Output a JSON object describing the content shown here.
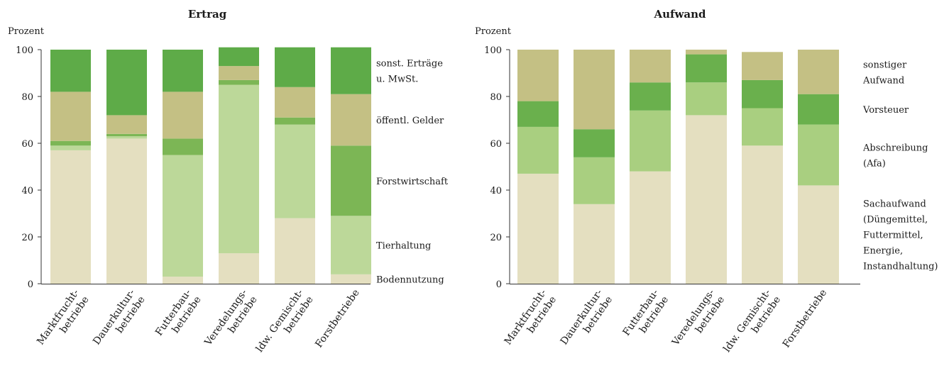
{
  "chart_data": [
    {
      "type": "bar",
      "stacked": true,
      "title": "Ertrag",
      "ylabel": "Prozent",
      "ylim": [
        0,
        100
      ],
      "yticks": [
        "0",
        "20",
        "40",
        "60",
        "80",
        "100"
      ],
      "grid": false,
      "legend_position": "right",
      "categories": [
        [
          "Marktfrucht-",
          "betriebe"
        ],
        [
          "Dauerkultur-",
          "betriebe"
        ],
        [
          "Futterbau-",
          "betriebe"
        ],
        [
          "Veredelungs-",
          "betriebe"
        ],
        [
          "ldw. Gemischt-",
          "betriebe"
        ],
        [
          "Forstbetriebe"
        ]
      ],
      "series": [
        {
          "name": "Bodennutzung",
          "legend_lines": [
            "Bodennutzung"
          ],
          "color": "#e4dfc0",
          "values": [
            57,
            62,
            3,
            13,
            28,
            4
          ]
        },
        {
          "name": "Tierhaltung",
          "legend_lines": [
            "Tierhaltung"
          ],
          "color": "#bcd899",
          "values": [
            2,
            1,
            52,
            72,
            40,
            25
          ]
        },
        {
          "name": "Forstwirtschaft",
          "legend_lines": [
            "Forstwirtschaft"
          ],
          "color": "#7cb655",
          "values": [
            2,
            1,
            7,
            2,
            3,
            30
          ]
        },
        {
          "name": "öffentl. Gelder",
          "legend_lines": [
            "öffentl. Gelder"
          ],
          "color": "#c4c084",
          "values": [
            21,
            8,
            20,
            6,
            13,
            22
          ]
        },
        {
          "name": "sonst. Erträge u. MwSt.",
          "legend_lines": [
            "sonst. Erträge",
            "u. MwSt."
          ],
          "color": "#5eab48",
          "values": [
            18,
            28,
            18,
            8,
            17,
            20
          ]
        }
      ]
    },
    {
      "type": "bar",
      "stacked": true,
      "title": "Aufwand",
      "ylabel": "Prozent",
      "ylim": [
        0,
        100
      ],
      "yticks": [
        "0",
        "20",
        "40",
        "60",
        "80",
        "100"
      ],
      "grid": false,
      "legend_position": "right",
      "categories": [
        [
          "Marktfrucht-",
          "betriebe"
        ],
        [
          "Dauerkultur-",
          "betriebe"
        ],
        [
          "Futterbau-",
          "betriebe"
        ],
        [
          "Veredelungs-",
          "betriebe"
        ],
        [
          "ldw. Gemischt-",
          "betriebe"
        ],
        [
          "Forstbetriebe"
        ]
      ],
      "series": [
        {
          "name": "Sachaufwand (Düngemittel, Futtermittel, Energie, Instandhaltung)",
          "legend_lines": [
            "Sachaufwand",
            "(Düngemittel,",
            "Futtermittel,",
            "Energie,",
            "Instandhaltung)"
          ],
          "color": "#e4dfc0",
          "values": [
            47,
            34,
            48,
            72,
            59,
            42
          ]
        },
        {
          "name": "Abschreibung (Afa)",
          "legend_lines": [
            "Abschreibung",
            "(Afa)"
          ],
          "color": "#a9cf80",
          "values": [
            20,
            20,
            26,
            14,
            16,
            26
          ]
        },
        {
          "name": "Vorsteuer",
          "legend_lines": [
            "Vorsteuer"
          ],
          "color": "#6ab04d",
          "values": [
            11,
            12,
            12,
            12,
            12,
            13
          ]
        },
        {
          "name": "sonstiger Aufwand",
          "legend_lines": [
            "sonstiger",
            "Aufwand"
          ],
          "color": "#c4c084",
          "values": [
            22,
            34,
            14,
            2,
            12,
            19
          ]
        }
      ]
    }
  ]
}
